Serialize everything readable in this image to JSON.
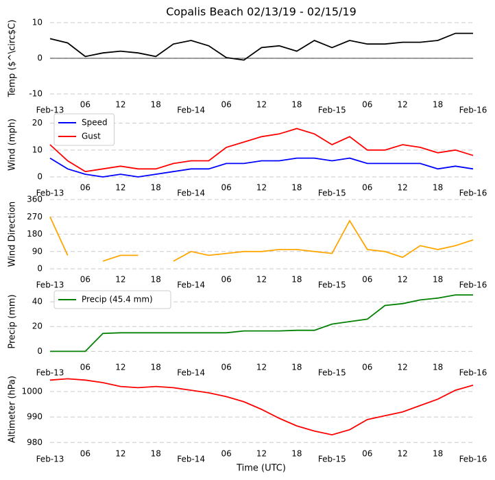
{
  "chart_data": [
    {
      "type": "line",
      "title": "Copalis Beach 02/13/19 - 02/15/19",
      "ylabel": "Temp ($^\\circ$C)",
      "ylim": [
        -10,
        10
      ],
      "yticks": [
        -10,
        0,
        10
      ],
      "zero_line": true,
      "grid": true,
      "xlim": [
        0,
        72
      ],
      "xticks": [
        {
          "value": 0,
          "label": "Feb-13"
        },
        {
          "value": 6,
          "label": "06"
        },
        12,
        18,
        {
          "value": 24,
          "label": "Feb-14"
        },
        {
          "value": 30,
          "label": "06"
        },
        {
          "value": 36,
          "label": "12"
        },
        {
          "value": 42,
          "label": "18"
        },
        {
          "value": 48,
          "label": "Feb-15"
        },
        {
          "value": 54,
          "label": "06"
        },
        {
          "value": 60,
          "label": "12"
        },
        {
          "value": 66,
          "label": "18"
        },
        {
          "value": 72,
          "label": "Feb-16"
        }
      ],
      "x": [
        0,
        3,
        6,
        9,
        12,
        15,
        18,
        21,
        24,
        27,
        30,
        33,
        36,
        39,
        42,
        45,
        48,
        51,
        54,
        57,
        60,
        63,
        66,
        69,
        72
      ],
      "series": [
        {
          "name": "Temp",
          "color": "#000000",
          "values": [
            5.5,
            4.3,
            0.5,
            1.5,
            2,
            1.5,
            0.5,
            4,
            5,
            3.5,
            0.2,
            -0.5,
            3,
            3.5,
            2,
            5,
            3,
            5,
            4,
            4,
            4.5,
            4.5,
            5,
            7,
            7
          ]
        }
      ]
    },
    {
      "type": "line",
      "ylabel": "Wind (mph)",
      "ylim": [
        0,
        24
      ],
      "yticks": [
        0,
        10,
        20
      ],
      "grid": true,
      "legend": "upper left",
      "xlim": [
        0,
        72
      ],
      "xticks": [
        {
          "value": 0,
          "label": "Feb-13"
        },
        {
          "value": 6,
          "label": "06"
        },
        12,
        18,
        {
          "value": 24,
          "label": "Feb-14"
        },
        {
          "value": 30,
          "label": "06"
        },
        {
          "value": 36,
          "label": "12"
        },
        {
          "value": 42,
          "label": "18"
        },
        {
          "value": 48,
          "label": "Feb-15"
        },
        {
          "value": 54,
          "label": "06"
        },
        {
          "value": 60,
          "label": "12"
        },
        {
          "value": 66,
          "label": "18"
        },
        {
          "value": 72,
          "label": "Feb-16"
        }
      ],
      "x": [
        0,
        3,
        6,
        9,
        12,
        15,
        18,
        21,
        24,
        27,
        30,
        33,
        36,
        39,
        42,
        45,
        48,
        51,
        54,
        57,
        60,
        63,
        66,
        69,
        72
      ],
      "series": [
        {
          "name": "Speed",
          "color": "#0000ff",
          "values": [
            7,
            3,
            1,
            0,
            1,
            0,
            1,
            2,
            3,
            3,
            5,
            5,
            6,
            6,
            7,
            7,
            6,
            7,
            5,
            5,
            5,
            5,
            3,
            4,
            3
          ]
        },
        {
          "name": "Gust",
          "color": "#ff0000",
          "values": [
            12,
            6,
            2,
            3,
            4,
            3,
            3,
            5,
            6,
            6,
            11,
            13,
            15,
            16,
            18,
            16,
            12,
            15,
            10,
            10,
            12,
            11,
            9,
            10,
            8
          ]
        }
      ]
    },
    {
      "type": "line",
      "ylabel": "Wind Direction",
      "ylim": [
        0,
        360
      ],
      "yticks": [
        0,
        90,
        180,
        270,
        360
      ],
      "grid": true,
      "xlim": [
        0,
        72
      ],
      "xticks": [
        {
          "value": 0,
          "label": "Feb-13"
        },
        {
          "value": 6,
          "label": "06"
        },
        12,
        18,
        {
          "value": 24,
          "label": "Feb-14"
        },
        {
          "value": 30,
          "label": "06"
        },
        {
          "value": 36,
          "label": "12"
        },
        {
          "value": 42,
          "label": "18"
        },
        {
          "value": 48,
          "label": "Feb-15"
        },
        {
          "value": 54,
          "label": "06"
        },
        {
          "value": 60,
          "label": "12"
        },
        {
          "value": 66,
          "label": "18"
        },
        {
          "value": 72,
          "label": "Feb-16"
        }
      ],
      "x": [
        0,
        3,
        6,
        9,
        12,
        15,
        18,
        21,
        24,
        27,
        30,
        33,
        36,
        39,
        42,
        45,
        48,
        51,
        54,
        57,
        60,
        63,
        66,
        69,
        72
      ],
      "series": [
        {
          "name": "Direction",
          "color": "#ffa500",
          "values": [
            270,
            70,
            null,
            40,
            70,
            70,
            null,
            40,
            90,
            70,
            80,
            90,
            90,
            100,
            100,
            90,
            80,
            250,
            100,
            90,
            60,
            120,
            100,
            120,
            150
          ]
        }
      ]
    },
    {
      "type": "line",
      "ylabel": "Precip (mm)",
      "ylim": [
        -2,
        50
      ],
      "yticks": [
        0,
        20,
        40
      ],
      "grid": true,
      "legend": "upper left",
      "xlim": [
        0,
        72
      ],
      "xticks": [
        {
          "value": 0,
          "label": "Feb-13"
        },
        {
          "value": 6,
          "label": "06"
        },
        12,
        18,
        {
          "value": 24,
          "label": "Feb-14"
        },
        {
          "value": 30,
          "label": "06"
        },
        {
          "value": 36,
          "label": "12"
        },
        {
          "value": 42,
          "label": "18"
        },
        {
          "value": 48,
          "label": "Feb-15"
        },
        {
          "value": 54,
          "label": "06"
        },
        {
          "value": 60,
          "label": "12"
        },
        {
          "value": 66,
          "label": "18"
        },
        {
          "value": 72,
          "label": "Feb-16"
        }
      ],
      "x": [
        0,
        3,
        6,
        9,
        12,
        15,
        18,
        21,
        24,
        27,
        30,
        33,
        36,
        39,
        42,
        45,
        48,
        51,
        54,
        57,
        60,
        63,
        66,
        69,
        72
      ],
      "series": [
        {
          "name": "Precip (45.4 mm)",
          "color": "#008000",
          "values": [
            0,
            0,
            0,
            14.5,
            15,
            15,
            15,
            15,
            15,
            15,
            15,
            16.5,
            16.5,
            16.5,
            17,
            17,
            22,
            24,
            26,
            37,
            38.5,
            41.5,
            43,
            45.5,
            45.5
          ]
        }
      ]
    },
    {
      "type": "line",
      "ylabel": "Altimeter (hPa)",
      "xlabel": "Time (UTC)",
      "ylim": [
        979,
        1007
      ],
      "yticks": [
        980,
        990,
        1000
      ],
      "grid": true,
      "xlim": [
        0,
        72
      ],
      "xticks": [
        {
          "value": 0,
          "label": "Feb-13"
        },
        {
          "value": 6,
          "label": "06"
        },
        12,
        18,
        {
          "value": 24,
          "label": "Feb-14"
        },
        {
          "value": 30,
          "label": "06"
        },
        {
          "value": 36,
          "label": "12"
        },
        {
          "value": 42,
          "label": "18"
        },
        {
          "value": 48,
          "label": "Feb-15"
        },
        {
          "value": 54,
          "label": "06"
        },
        {
          "value": 60,
          "label": "12"
        },
        {
          "value": 66,
          "label": "18"
        },
        {
          "value": 72,
          "label": "Feb-16"
        }
      ],
      "x": [
        0,
        3,
        6,
        9,
        12,
        15,
        18,
        21,
        24,
        27,
        30,
        33,
        36,
        39,
        42,
        45,
        48,
        51,
        54,
        57,
        60,
        63,
        66,
        69,
        72
      ],
      "series": [
        {
          "name": "Altimeter",
          "color": "#ff0000",
          "values": [
            1004.5,
            1005,
            1004.5,
            1003.5,
            1002,
            1001.5,
            1002,
            1001.5,
            1000.5,
            999.5,
            998,
            996,
            993,
            989.5,
            986.5,
            984.5,
            983,
            985,
            989,
            990.5,
            992,
            994.5,
            997,
            1000.5,
            1002.5
          ]
        }
      ]
    }
  ]
}
